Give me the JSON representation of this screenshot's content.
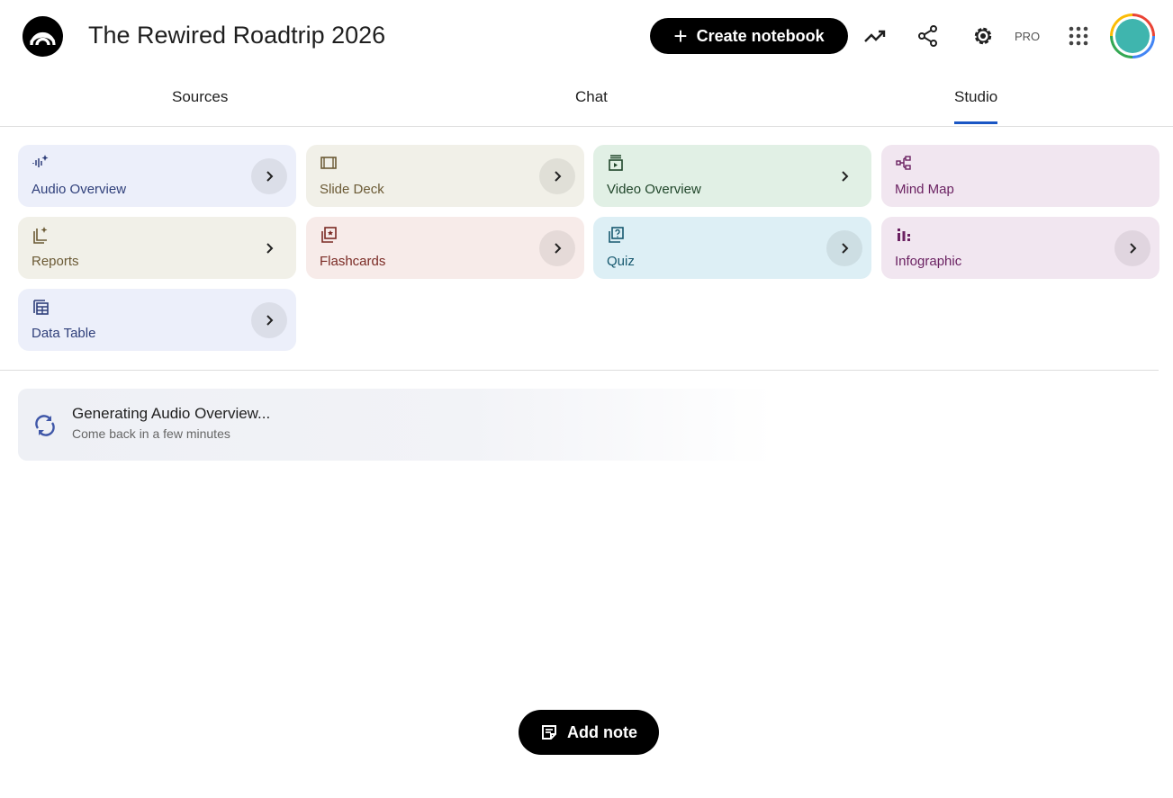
{
  "header": {
    "title": "The Rewired Roadtrip 2026",
    "create_label": "Create notebook",
    "pro_label": "PRO"
  },
  "tabs": [
    {
      "label": "Sources"
    },
    {
      "label": "Chat"
    },
    {
      "label": "Studio",
      "active": true
    }
  ],
  "studio": {
    "tools": [
      {
        "label": "Audio Overview",
        "icon": "audio-waveform-sparkle-icon",
        "bg": "#eceffa",
        "color": "#2f3f7a"
      },
      {
        "label": "Slide Deck",
        "icon": "slides-icon",
        "bg": "#f1f0e8",
        "color": "#6b5a35"
      },
      {
        "label": "Video Overview",
        "icon": "video-icon",
        "bg": "#e1f0e5",
        "color": "#20462a"
      },
      {
        "label": "Mind Map",
        "icon": "mind-map-icon",
        "bg": "#f1e6f0",
        "color": "#6b2262"
      },
      {
        "label": "Reports",
        "icon": "reports-icon",
        "bg": "#f1f0e8",
        "color": "#6b5a35"
      },
      {
        "label": "Flashcards",
        "icon": "flashcards-icon",
        "bg": "#f7ebe9",
        "color": "#7a2a24"
      },
      {
        "label": "Quiz",
        "icon": "quiz-icon",
        "bg": "#ddeff5",
        "color": "#17596f"
      },
      {
        "label": "Infographic",
        "icon": "infographic-icon",
        "bg": "#f1e6f0",
        "color": "#6b2262"
      },
      {
        "label": "Data Table",
        "icon": "data-table-icon",
        "bg": "#eceffa",
        "color": "#2f3f7a"
      }
    ]
  },
  "generating": {
    "title": "Generating Audio Overview...",
    "subtitle": "Come back in a few minutes"
  },
  "add_note_label": "Add note"
}
